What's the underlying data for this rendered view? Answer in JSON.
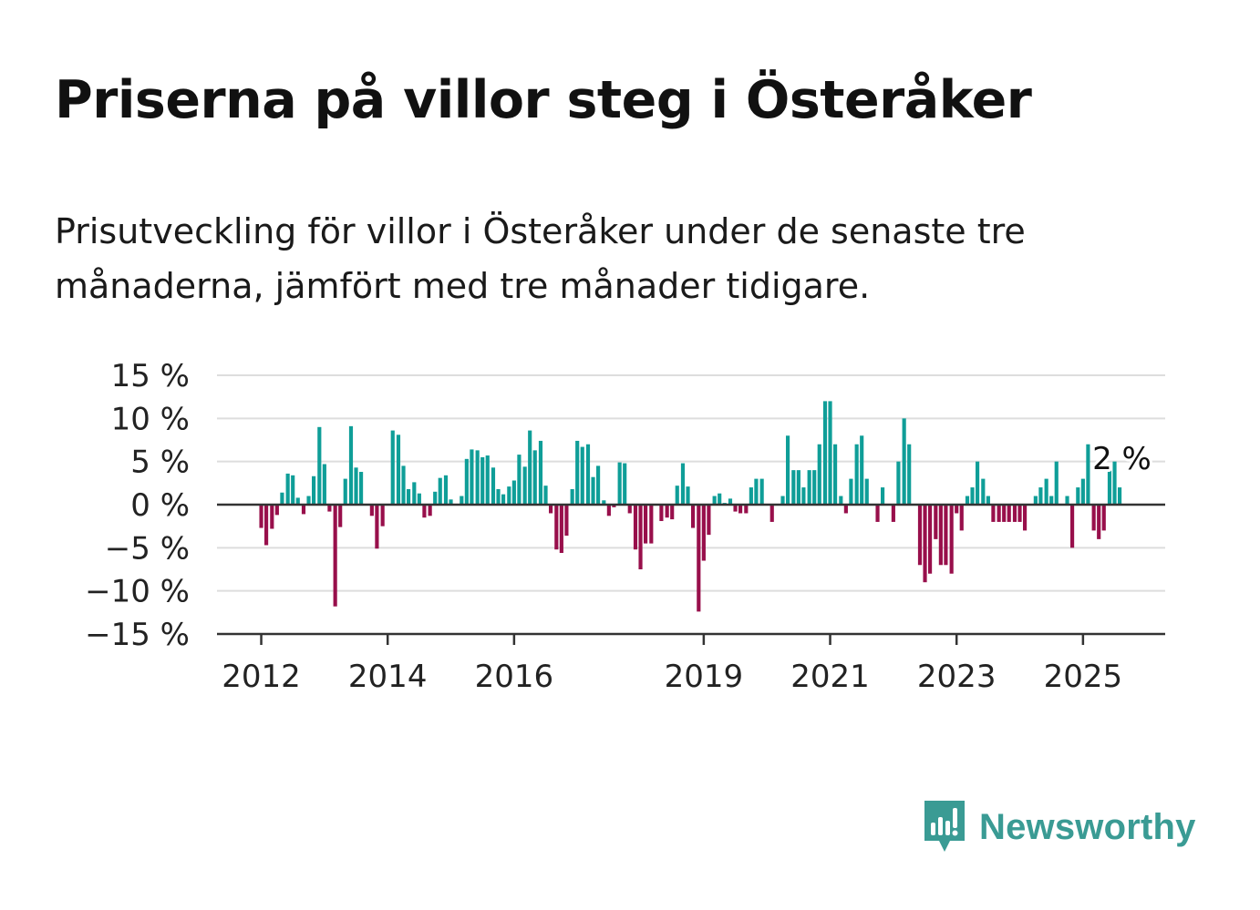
{
  "title": "Priserna på villor steg i Österåker",
  "subtitle": "Prisutveckling för villor i Österåker under de senaste tre månaderna, jämfört med tre månader tidigare.",
  "brand": {
    "name": "Newsworthy",
    "icon": "newsworthy-logo-icon",
    "color": "#3a9b94"
  },
  "colors": {
    "positive": "#0f9e98",
    "negative": "#980f4b",
    "grid": "#dddddd",
    "axis": "#333333"
  },
  "chart_data": {
    "type": "bar",
    "unit": "%",
    "ylim": [
      -15,
      15
    ],
    "yticks": [
      15,
      10,
      5,
      0,
      -5,
      -10,
      -15
    ],
    "ytick_labels": [
      "15 %",
      "10 %",
      "5 %",
      "0 %",
      "−5 %",
      "−10 %",
      "−15 %"
    ],
    "xtick_labels": [
      "2012",
      "2014",
      "2016",
      "2019",
      "2021",
      "2023",
      "2025"
    ],
    "xtick_values": [
      2012,
      2014,
      2016,
      2019,
      2021,
      2023,
      2025
    ],
    "xlim": [
      2011.3,
      2026.3
    ],
    "grid": true,
    "latest_label": "2 %",
    "x": [
      2012.0,
      2012.08,
      2012.17,
      2012.25,
      2012.33,
      2012.42,
      2012.5,
      2012.58,
      2012.67,
      2012.75,
      2012.83,
      2012.92,
      2013.0,
      2013.08,
      2013.17,
      2013.25,
      2013.33,
      2013.42,
      2013.5,
      2013.58,
      2013.67,
      2013.75,
      2013.83,
      2013.92,
      2014.0,
      2014.08,
      2014.17,
      2014.25,
      2014.33,
      2014.42,
      2014.5,
      2014.58,
      2014.67,
      2014.75,
      2014.83,
      2014.92,
      2015.0,
      2015.08,
      2015.17,
      2015.25,
      2015.33,
      2015.42,
      2015.5,
      2015.58,
      2015.67,
      2015.75,
      2015.83,
      2015.92,
      2016.0,
      2016.08,
      2016.17,
      2016.25,
      2016.33,
      2016.42,
      2016.5,
      2016.58,
      2016.67,
      2016.75,
      2016.83,
      2016.92,
      2017.0,
      2017.08,
      2017.17,
      2017.25,
      2017.33,
      2017.42,
      2017.5,
      2017.58,
      2017.67,
      2017.75,
      2017.83,
      2017.92,
      2018.0,
      2018.08,
      2018.17,
      2018.25,
      2018.33,
      2018.42,
      2018.5,
      2018.58,
      2018.67,
      2018.75,
      2018.83,
      2018.92,
      2019.0,
      2019.08,
      2019.17,
      2019.25,
      2019.33,
      2019.42,
      2019.5,
      2019.58,
      2019.67,
      2019.75,
      2019.83,
      2019.92,
      2020.0,
      2020.08,
      2020.17,
      2020.25,
      2020.33,
      2020.42,
      2020.5,
      2020.58,
      2020.67,
      2020.75,
      2020.83,
      2020.92,
      2021.0,
      2021.08,
      2021.17,
      2021.25,
      2021.33,
      2021.42,
      2021.5,
      2021.58,
      2021.67,
      2021.75,
      2021.83,
      2021.92,
      2022.0,
      2022.08,
      2022.17,
      2022.25,
      2022.33,
      2022.42,
      2022.5,
      2022.58,
      2022.67,
      2022.75,
      2022.83,
      2022.92,
      2023.0,
      2023.08,
      2023.17,
      2023.25,
      2023.33,
      2023.42,
      2023.5,
      2023.58,
      2023.67,
      2023.75,
      2023.83,
      2023.92,
      2024.0,
      2024.08,
      2024.17,
      2024.25,
      2024.33,
      2024.42,
      2024.5,
      2024.58,
      2024.67,
      2024.75,
      2024.83,
      2024.92,
      2025.0,
      2025.08,
      2025.17,
      2025.25,
      2025.33,
      2025.42,
      2025.5,
      2025.58
    ],
    "values": [
      -2.7,
      -4.7,
      -2.8,
      -1.2,
      1.4,
      3.6,
      3.4,
      0.8,
      -1.1,
      1.0,
      3.3,
      9.0,
      4.7,
      -0.8,
      -11.8,
      -2.6,
      3.0,
      9.1,
      4.3,
      3.8,
      0,
      -1.3,
      -5.1,
      -2.5,
      0,
      8.6,
      8.1,
      4.5,
      1.8,
      2.6,
      1.3,
      -1.5,
      -1.3,
      1.5,
      3.1,
      3.4,
      0.6,
      0,
      1.0,
      5.3,
      6.4,
      6.3,
      5.5,
      5.7,
      4.3,
      1.8,
      1.2,
      2.1,
      2.8,
      5.8,
      4.4,
      8.6,
      6.3,
      7.4,
      2.2,
      -1.0,
      -5.2,
      -5.6,
      -3.6,
      1.8,
      7.4,
      6.7,
      7.0,
      3.2,
      4.5,
      0.5,
      -1.3,
      -0.3,
      4.9,
      4.8,
      -1.0,
      -5.2,
      -7.5,
      -4.5,
      -4.5,
      0,
      -1.9,
      -1.5,
      -1.7,
      2.2,
      4.8,
      2.1,
      -2.7,
      -12.4,
      -6.5,
      -3.5,
      1.0,
      1.3,
      0.2,
      0.7,
      -0.8,
      -1.0,
      -1.0,
      2.0,
      3.0,
      3.0,
      0,
      -2.0,
      0,
      1.0,
      8.0,
      4.0,
      4.0,
      2.0,
      4.0,
      4.0,
      7.0,
      12.0,
      12.0,
      7.0,
      1.0,
      -1.0,
      3.0,
      7.0,
      8.0,
      3.0,
      0,
      -2.0,
      2.0,
      0,
      -2.0,
      5.0,
      10.0,
      7.0,
      0,
      -7.0,
      -9.0,
      -8.0,
      -4.0,
      -7.0,
      -7.0,
      -8.0,
      -1.0,
      -3.0,
      1.0,
      2.0,
      5.0,
      3.0,
      1.0,
      -2.0,
      -2.0,
      -2.0,
      -2.0,
      -2.0,
      -2.0,
      -3.0,
      0,
      1.0,
      2.0,
      3.0,
      1.0,
      5.0,
      0,
      1.0,
      -5.0,
      2.0,
      3.0,
      7.0,
      -3.0,
      -4.0,
      -3.0,
      4.0,
      5.0,
      2.0
    ]
  }
}
